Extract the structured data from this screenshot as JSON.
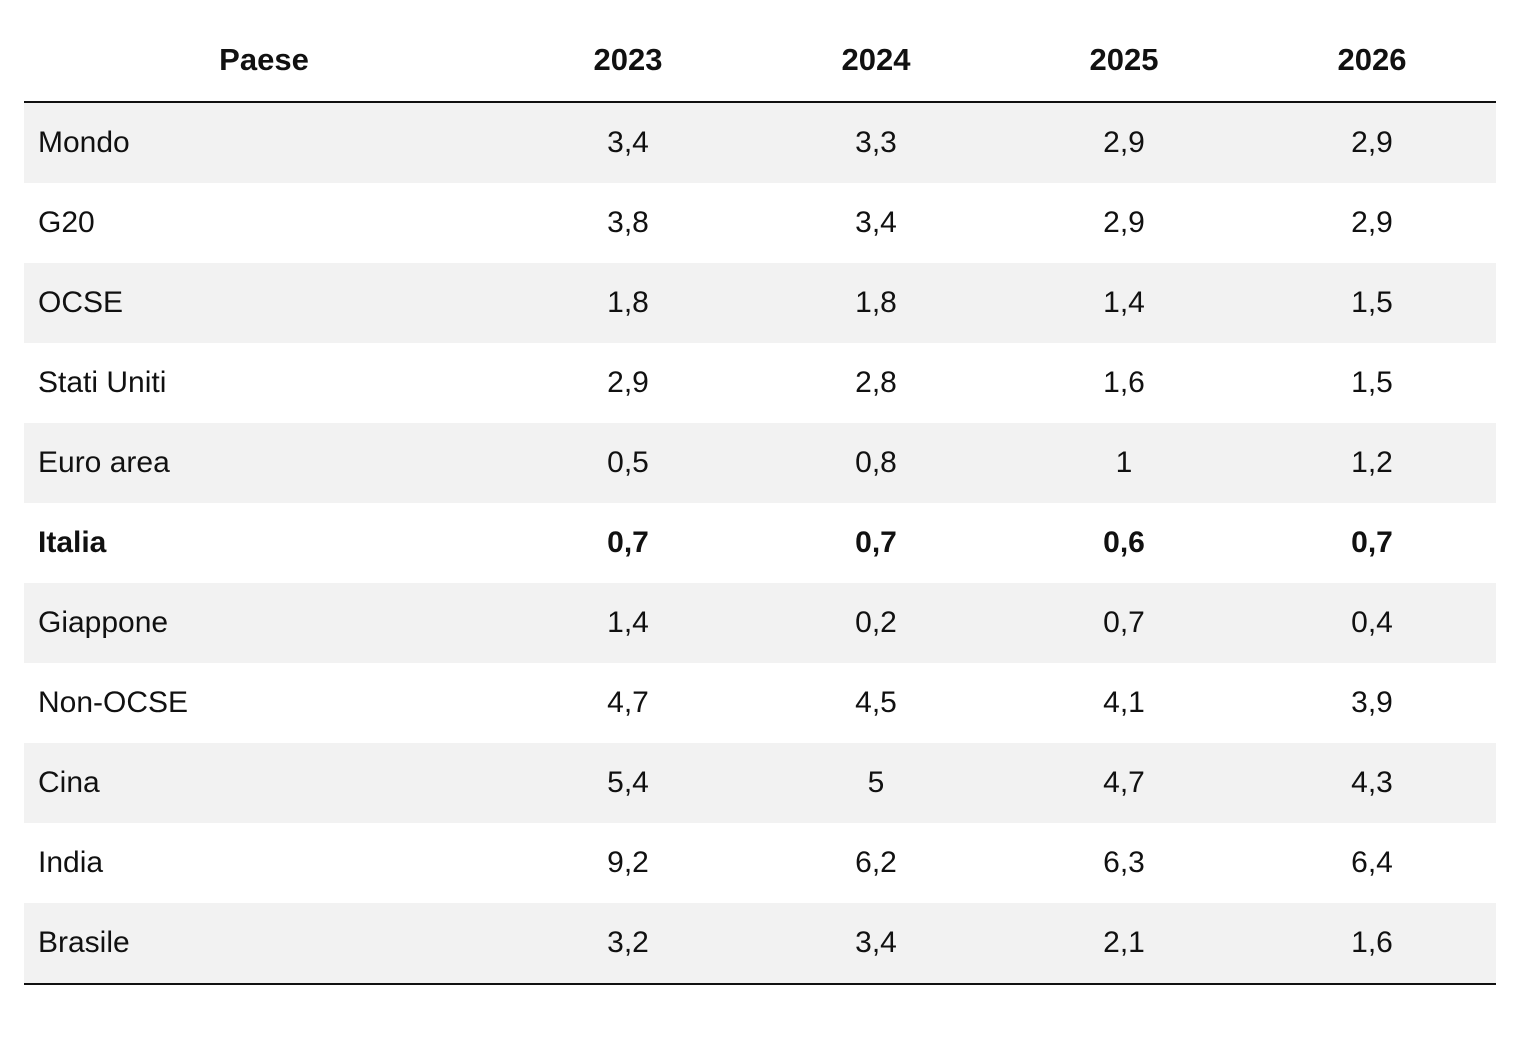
{
  "table": {
    "headers": [
      "Paese",
      "2023",
      "2024",
      "2025",
      "2026"
    ],
    "rows": [
      {
        "country": "Mondo",
        "values": [
          "3,4",
          "3,3",
          "2,9",
          "2,9"
        ],
        "bold": false
      },
      {
        "country": "G20",
        "values": [
          "3,8",
          "3,4",
          "2,9",
          "2,9"
        ],
        "bold": false
      },
      {
        "country": "OCSE",
        "values": [
          "1,8",
          "1,8",
          "1,4",
          "1,5"
        ],
        "bold": false
      },
      {
        "country": "Stati Uniti",
        "values": [
          "2,9",
          "2,8",
          "1,6",
          "1,5"
        ],
        "bold": false
      },
      {
        "country": "Euro area",
        "values": [
          "0,5",
          "0,8",
          "1",
          "1,2"
        ],
        "bold": false
      },
      {
        "country": "Italia",
        "values": [
          "0,7",
          "0,7",
          "0,6",
          "0,7"
        ],
        "bold": true
      },
      {
        "country": "Giappone",
        "values": [
          "1,4",
          "0,2",
          "0,7",
          "0,4"
        ],
        "bold": false
      },
      {
        "country": "Non-OCSE",
        "values": [
          "4,7",
          "4,5",
          "4,1",
          "3,9"
        ],
        "bold": false
      },
      {
        "country": "Cina",
        "values": [
          "5,4",
          "5",
          "4,7",
          "4,3"
        ],
        "bold": false
      },
      {
        "country": "India",
        "values": [
          "9,2",
          "6,2",
          "6,3",
          "6,4"
        ],
        "bold": false
      },
      {
        "country": "Brasile",
        "values": [
          "3,2",
          "3,4",
          "2,1",
          "1,6"
        ],
        "bold": false
      }
    ]
  }
}
